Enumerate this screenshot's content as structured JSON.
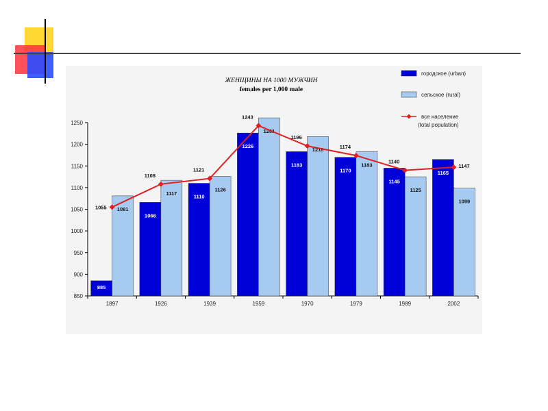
{
  "decoration": {
    "yellow": "#ffd733",
    "red": "#ff3340",
    "blue": "#2a4bff",
    "line": "#444444"
  },
  "chart_data": {
    "type": "bar",
    "title": "ЖЕНЩИНЫ НА 1000 МУЖЧИН",
    "subtitle": "females per 1,000 male",
    "categories": [
      "1897",
      "1926",
      "1939",
      "1959",
      "1970",
      "1979",
      "1989",
      "2002"
    ],
    "series": [
      {
        "name": "городское (urban)",
        "values": [
          885,
          1066,
          1110,
          1226,
          1183,
          1170,
          1145,
          1165
        ],
        "color": "#0000d8",
        "label_color": "#ffffff"
      },
      {
        "name": "сельское (rural)",
        "values": [
          1081,
          1117,
          1126,
          1261,
          1218,
          1183,
          1125,
          1099
        ],
        "color": "#a6caf0",
        "label_color": "#111111"
      }
    ],
    "line_series": {
      "name_line1": "все население",
      "name_line2": "(total population)",
      "values": [
        1055,
        1108,
        1121,
        1243,
        1196,
        1174,
        1140,
        1147
      ],
      "color": "#e02020"
    },
    "ylim": [
      850,
      1250
    ],
    "yticks": [
      850,
      900,
      950,
      1000,
      1050,
      1100,
      1150,
      1200,
      1250
    ],
    "legend_position": "top-right",
    "grid": false
  }
}
